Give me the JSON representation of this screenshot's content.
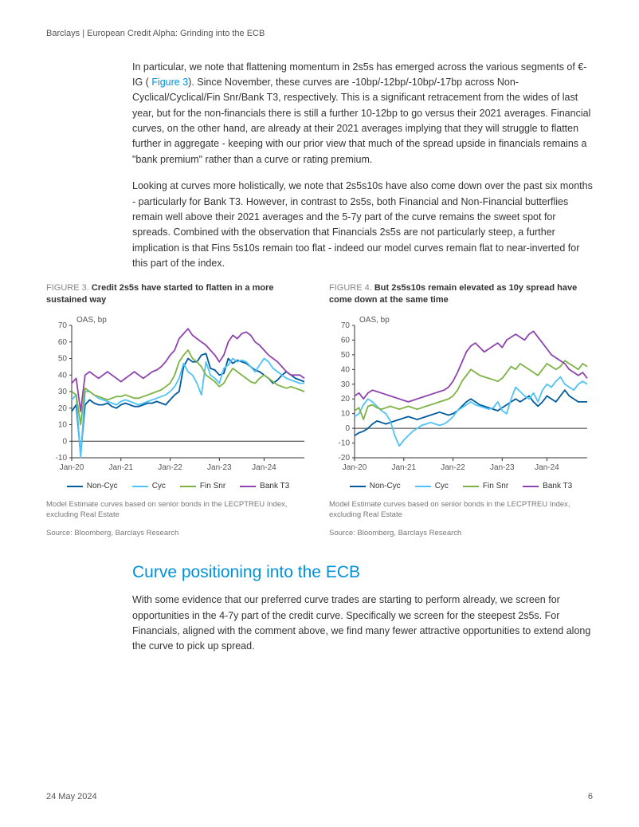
{
  "header": {
    "text": "Barclays | European Credit Alpha: Grinding into the ECB"
  },
  "para1": {
    "pre": "In particular, we note that flattening momentum in 2s5s has emerged across the various segments of €-IG ( ",
    "link": "Figure 3",
    "post": "). Since November, these curves are -10bp/-12bp/-10bp/-17bp across Non-Cyclical/Cyclical/Fin Snr/Bank T3, respectively. This is a significant retracement from the wides of last year, but for the non-financials there is still a further 10-12bp to go versus their 2021 averages. Financial curves, on the other hand, are already at their 2021 averages implying that they will struggle to flatten further in aggregate - keeping with our prior view that much of the spread upside in financials remains a \"bank premium\" rather than a curve or rating premium."
  },
  "para2": "Looking at curves more holistically, we note that 2s5s10s have also come down over the past six months - particularly for Bank T3. However, in contrast to 2s5s, both Financial and Non-Financial butterflies remain well above their 2021 averages and the 5-7y part of the curve remains the sweet spot for spreads. Combined with the observation that Financials 2s5s are not particularly steep, a further implication is that Fins 5s10s remain too flat - indeed our model curves remain flat to near-inverted for this part of the index.",
  "fig3": {
    "label": "FIGURE 3.",
    "title": "Credit 2s5s have started to flatten in a more sustained way",
    "axis_label": "OAS, bp",
    "type": "line",
    "ylim": [
      -10,
      70
    ],
    "ytick_step": 10,
    "x_labels": [
      "Jan-20",
      "Jan-21",
      "Jan-22",
      "Jan-23",
      "Jan-24"
    ],
    "x_count": 53,
    "grid_color": "#d9d9d9",
    "axis_color": "#333333",
    "background_color": "#ffffff",
    "tick_fontsize": 10,
    "line_width": 1.8,
    "series": [
      {
        "name": "Non-Cyc",
        "color": "#005a9c",
        "values": [
          18,
          22,
          -8,
          22,
          25,
          23,
          22,
          22,
          23,
          21,
          20,
          22,
          23,
          22,
          21,
          21,
          22,
          23,
          23,
          24,
          23,
          22,
          25,
          28,
          30,
          45,
          50,
          48,
          48,
          52,
          53,
          44,
          43,
          40,
          41,
          50,
          47,
          49,
          48,
          47,
          45,
          43,
          42,
          40,
          38,
          35,
          37,
          40,
          42,
          40,
          38,
          37,
          36
        ]
      },
      {
        "name": "Cyc",
        "color": "#4fc3f7",
        "values": [
          25,
          28,
          -10,
          30,
          30,
          28,
          26,
          25,
          24,
          23,
          22,
          24,
          25,
          24,
          23,
          22,
          23,
          24,
          25,
          26,
          27,
          28,
          30,
          33,
          38,
          47,
          42,
          40,
          35,
          28,
          48,
          40,
          38,
          35,
          44,
          46,
          50,
          48,
          49,
          48,
          45,
          42,
          46,
          50,
          48,
          44,
          42,
          40,
          38,
          37,
          36,
          35,
          35
        ]
      },
      {
        "name": "Fin Snr",
        "color": "#7cb342",
        "values": [
          30,
          28,
          10,
          32,
          30,
          28,
          27,
          26,
          25,
          26,
          27,
          27,
          28,
          27,
          26,
          26,
          27,
          28,
          29,
          30,
          31,
          33,
          35,
          40,
          48,
          52,
          55,
          50,
          48,
          45,
          40,
          38,
          36,
          33,
          35,
          40,
          44,
          42,
          40,
          38,
          36,
          35,
          38,
          40,
          38,
          36,
          34,
          33,
          32,
          33,
          32,
          31,
          30
        ]
      },
      {
        "name": "Bank T3",
        "color": "#8e44ad",
        "values": [
          35,
          38,
          18,
          40,
          42,
          40,
          38,
          40,
          42,
          40,
          38,
          36,
          38,
          40,
          42,
          40,
          38,
          40,
          42,
          43,
          45,
          48,
          52,
          55,
          62,
          65,
          68,
          64,
          62,
          60,
          58,
          55,
          52,
          48,
          52,
          60,
          64,
          62,
          65,
          66,
          64,
          60,
          58,
          55,
          52,
          50,
          48,
          45,
          42,
          40,
          40,
          40,
          38
        ]
      }
    ],
    "note1": "Model Estimate curves based on senior bonds in the LECPTREU Index, excluding Real Estate",
    "note2": "Source: Bloomberg, Barclays Research"
  },
  "fig4": {
    "label": "FIGURE 4.",
    "title": "But 2s5s10s remain elevated as 10y spread have come down at the same time",
    "axis_label": "OAS, bp",
    "type": "line",
    "ylim": [
      -20,
      70
    ],
    "ytick_step": 10,
    "x_labels": [
      "Jan-20",
      "Jan-21",
      "Jan-22",
      "Jan-23",
      "Jan-24"
    ],
    "x_count": 53,
    "grid_color": "#d9d9d9",
    "axis_color": "#333333",
    "background_color": "#ffffff",
    "tick_fontsize": 10,
    "line_width": 1.8,
    "series": [
      {
        "name": "Non-Cyc",
        "color": "#005a9c",
        "values": [
          -5,
          -3,
          -2,
          0,
          3,
          5,
          4,
          3,
          4,
          5,
          6,
          7,
          8,
          7,
          6,
          7,
          8,
          9,
          10,
          11,
          10,
          9,
          10,
          12,
          15,
          18,
          20,
          18,
          16,
          15,
          14,
          13,
          12,
          14,
          16,
          18,
          20,
          18,
          20,
          22,
          18,
          15,
          18,
          22,
          20,
          18,
          22,
          26,
          22,
          20,
          18,
          18,
          18
        ]
      },
      {
        "name": "Cyc",
        "color": "#4fc3f7",
        "values": [
          8,
          10,
          16,
          20,
          18,
          15,
          12,
          10,
          5,
          -5,
          -12,
          -8,
          -5,
          -2,
          0,
          2,
          3,
          4,
          3,
          2,
          3,
          5,
          8,
          12,
          14,
          16,
          18,
          16,
          15,
          14,
          13,
          14,
          18,
          12,
          10,
          20,
          28,
          25,
          22,
          20,
          24,
          18,
          26,
          30,
          28,
          32,
          35,
          30,
          28,
          26,
          30,
          32,
          30
        ]
      },
      {
        "name": "Fin Snr",
        "color": "#7cb342",
        "values": [
          12,
          14,
          6,
          15,
          16,
          14,
          13,
          14,
          15,
          14,
          13,
          14,
          15,
          14,
          13,
          14,
          15,
          16,
          17,
          18,
          19,
          20,
          22,
          26,
          32,
          36,
          40,
          38,
          36,
          35,
          34,
          33,
          32,
          34,
          38,
          42,
          40,
          44,
          42,
          40,
          38,
          36,
          40,
          44,
          42,
          40,
          42,
          46,
          44,
          42,
          40,
          44,
          42
        ]
      },
      {
        "name": "Bank T3",
        "color": "#8e44ad",
        "values": [
          22,
          24,
          20,
          24,
          26,
          25,
          24,
          23,
          22,
          21,
          20,
          19,
          18,
          19,
          20,
          21,
          22,
          23,
          24,
          25,
          26,
          28,
          32,
          38,
          45,
          52,
          56,
          58,
          55,
          52,
          54,
          56,
          58,
          55,
          60,
          62,
          64,
          62,
          60,
          64,
          66,
          62,
          58,
          54,
          50,
          48,
          46,
          44,
          40,
          38,
          36,
          38,
          34
        ]
      }
    ],
    "note1": "Model Estimate curves based on senior bonds in the LECPTREU Index, excluding Real Estate",
    "note2": "Source: Bloomberg, Barclays Research"
  },
  "section": {
    "title": "Curve positioning into the ECB"
  },
  "para3": "With some evidence that our preferred curve trades are starting to perform already, we screen for opportunities in the 4-7y part of the credit curve. Specifically we screen for the steepest 2s5s. For Financials, aligned with the comment above, we find many fewer attractive opportunities to extend along the curve to pick up spread.",
  "footer": {
    "date": "24 May 2024",
    "page": "6"
  }
}
